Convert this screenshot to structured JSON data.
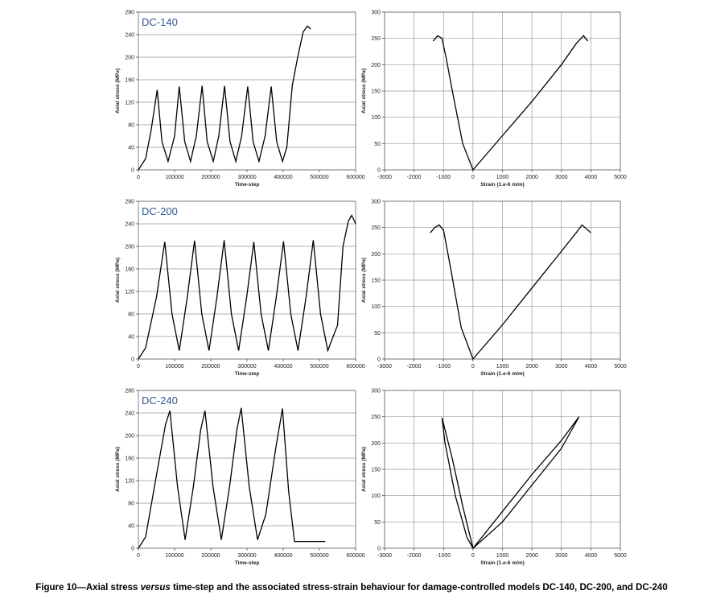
{
  "chart_data": [
    {
      "type": "line",
      "annotation": "DC-140",
      "xlabel": "Time-step",
      "ylabel": "Axial stress (MPa)",
      "x": [
        0,
        20000,
        35000,
        52000,
        65000,
        82000,
        100000,
        113000,
        128000,
        144000,
        160000,
        176000,
        190000,
        207000,
        222000,
        238000,
        253000,
        269000,
        285000,
        302000,
        317000,
        333000,
        350000,
        367000,
        382000,
        398000,
        410000,
        425000,
        440000,
        455000,
        467000,
        476000
      ],
      "values": [
        0,
        20,
        70,
        142,
        50,
        15,
        60,
        148,
        50,
        15,
        60,
        149,
        50,
        15,
        60,
        149,
        50,
        15,
        60,
        148,
        50,
        15,
        60,
        148,
        50,
        15,
        40,
        150,
        200,
        245,
        255,
        250
      ],
      "color": "#000000",
      "xlim": [
        0,
        600000
      ],
      "xticks": [
        0,
        100000,
        200000,
        300000,
        400000,
        500000,
        600000
      ],
      "ylim": [
        0,
        280
      ],
      "yticks": [
        0,
        40,
        80,
        120,
        160,
        200,
        240,
        280
      ],
      "grid": {
        "x": false,
        "y": true
      }
    },
    {
      "type": "line",
      "xlabel": "Strain (1.e-6 m/m)",
      "ylabel": "Axial stress (MPa)",
      "x": [
        -1350,
        -1200,
        -1050,
        -900,
        -700,
        -350,
        0,
        1000,
        2000,
        3000,
        3500,
        3750,
        3900
      ],
      "values": [
        245,
        255,
        250,
        210,
        150,
        50,
        0,
        65,
        130,
        200,
        240,
        255,
        245
      ],
      "color": "#000000",
      "xlim": [
        -3000,
        5000
      ],
      "xticks": [
        -3000,
        -2000,
        -1000,
        0,
        1000,
        2000,
        3000,
        4000,
        5000
      ],
      "ylim": [
        0,
        300
      ],
      "yticks": [
        0,
        50,
        100,
        150,
        200,
        250,
        300
      ],
      "grid": {
        "x": true,
        "y": true
      }
    },
    {
      "type": "line",
      "annotation": "DC-200",
      "xlabel": "Time-step",
      "ylabel": "Axial stress (MPa)",
      "x": [
        0,
        20000,
        50000,
        73000,
        93000,
        113000,
        135000,
        155000,
        175000,
        195000,
        217000,
        237000,
        257000,
        277000,
        299000,
        319000,
        339000,
        359000,
        381000,
        401000,
        421000,
        441000,
        463000,
        483000,
        503000,
        523000,
        550000,
        565000,
        580000,
        589000,
        600000
      ],
      "values": [
        0,
        20,
        110,
        208,
        80,
        15,
        110,
        210,
        80,
        15,
        110,
        211,
        80,
        15,
        110,
        208,
        80,
        15,
        110,
        209,
        80,
        15,
        110,
        211,
        80,
        15,
        60,
        200,
        245,
        255,
        240
      ],
      "color": "#000000",
      "xlim": [
        0,
        600000
      ],
      "xticks": [
        0,
        100000,
        200000,
        300000,
        400000,
        500000,
        600000
      ],
      "ylim": [
        0,
        280
      ],
      "yticks": [
        0,
        40,
        80,
        120,
        160,
        200,
        240,
        280
      ],
      "grid": {
        "x": false,
        "y": true
      }
    },
    {
      "type": "line",
      "xlabel": "Strain (1.e-6 m/m)",
      "ylabel": "Axial stress (MPa)",
      "x": [
        -1450,
        -1300,
        -1150,
        -1000,
        -750,
        -400,
        0,
        1000,
        2000,
        3000,
        3500,
        3700,
        4000
      ],
      "values": [
        240,
        250,
        255,
        245,
        170,
        60,
        0,
        65,
        135,
        205,
        240,
        255,
        240
      ],
      "color": "#000000",
      "xlim": [
        -3000,
        5000
      ],
      "xticks": [
        -3000,
        -2000,
        -1000,
        0,
        1000,
        2000,
        3000,
        4000,
        5000
      ],
      "ylim": [
        0,
        300
      ],
      "yticks": [
        0,
        50,
        100,
        150,
        200,
        250,
        300
      ],
      "grid": {
        "x": true,
        "y": true
      }
    },
    {
      "type": "line",
      "annotation": "DC-240",
      "xlabel": "Time-step",
      "ylabel": "Axial stress (MPa)",
      "x": [
        0,
        20000,
        50000,
        75000,
        87000,
        108000,
        129000,
        152000,
        172000,
        184000,
        206000,
        229000,
        252000,
        272000,
        284000,
        306000,
        329000,
        352000,
        380000,
        398000,
        415000,
        431000,
        516000
      ],
      "values": [
        0,
        20,
        130,
        220,
        244,
        110,
        15,
        110,
        210,
        244,
        110,
        15,
        110,
        210,
        249,
        110,
        15,
        60,
        180,
        248,
        100,
        12,
        12
      ],
      "color": "#000000",
      "xlim": [
        0,
        600000
      ],
      "xticks": [
        0,
        100000,
        200000,
        300000,
        400000,
        500000,
        600000
      ],
      "ylim": [
        0,
        280
      ],
      "yticks": [
        0,
        40,
        80,
        120,
        160,
        200,
        240,
        280
      ],
      "grid": {
        "x": false,
        "y": true
      }
    },
    {
      "type": "line",
      "xlabel": "Strain (1.e-6 m/m)",
      "ylabel": "Axial stress (MPa)",
      "x": [
        0,
        1000,
        2000,
        3000,
        3600,
        3000,
        2000,
        1000,
        0,
        -350,
        -700,
        -1050,
        -950,
        -600,
        -200,
        0
      ],
      "values": [
        0,
        70,
        140,
        205,
        250,
        190,
        120,
        50,
        0,
        80,
        170,
        248,
        200,
        100,
        20,
        0
      ],
      "color": "#000000",
      "xlim": [
        -3000,
        5000
      ],
      "xticks": [
        -3000,
        -2000,
        -1000,
        0,
        1000,
        2000,
        3000,
        4000,
        5000
      ],
      "ylim": [
        0,
        300
      ],
      "yticks": [
        0,
        50,
        100,
        150,
        200,
        250,
        300
      ],
      "grid": {
        "x": true,
        "y": true
      }
    }
  ],
  "caption": {
    "parts": [
      "Figure 10—Axial stress ",
      "versus",
      " time-step and the associated stress-strain behaviour for damage-controlled models DC-140, DC-200, and DC-240"
    ]
  }
}
